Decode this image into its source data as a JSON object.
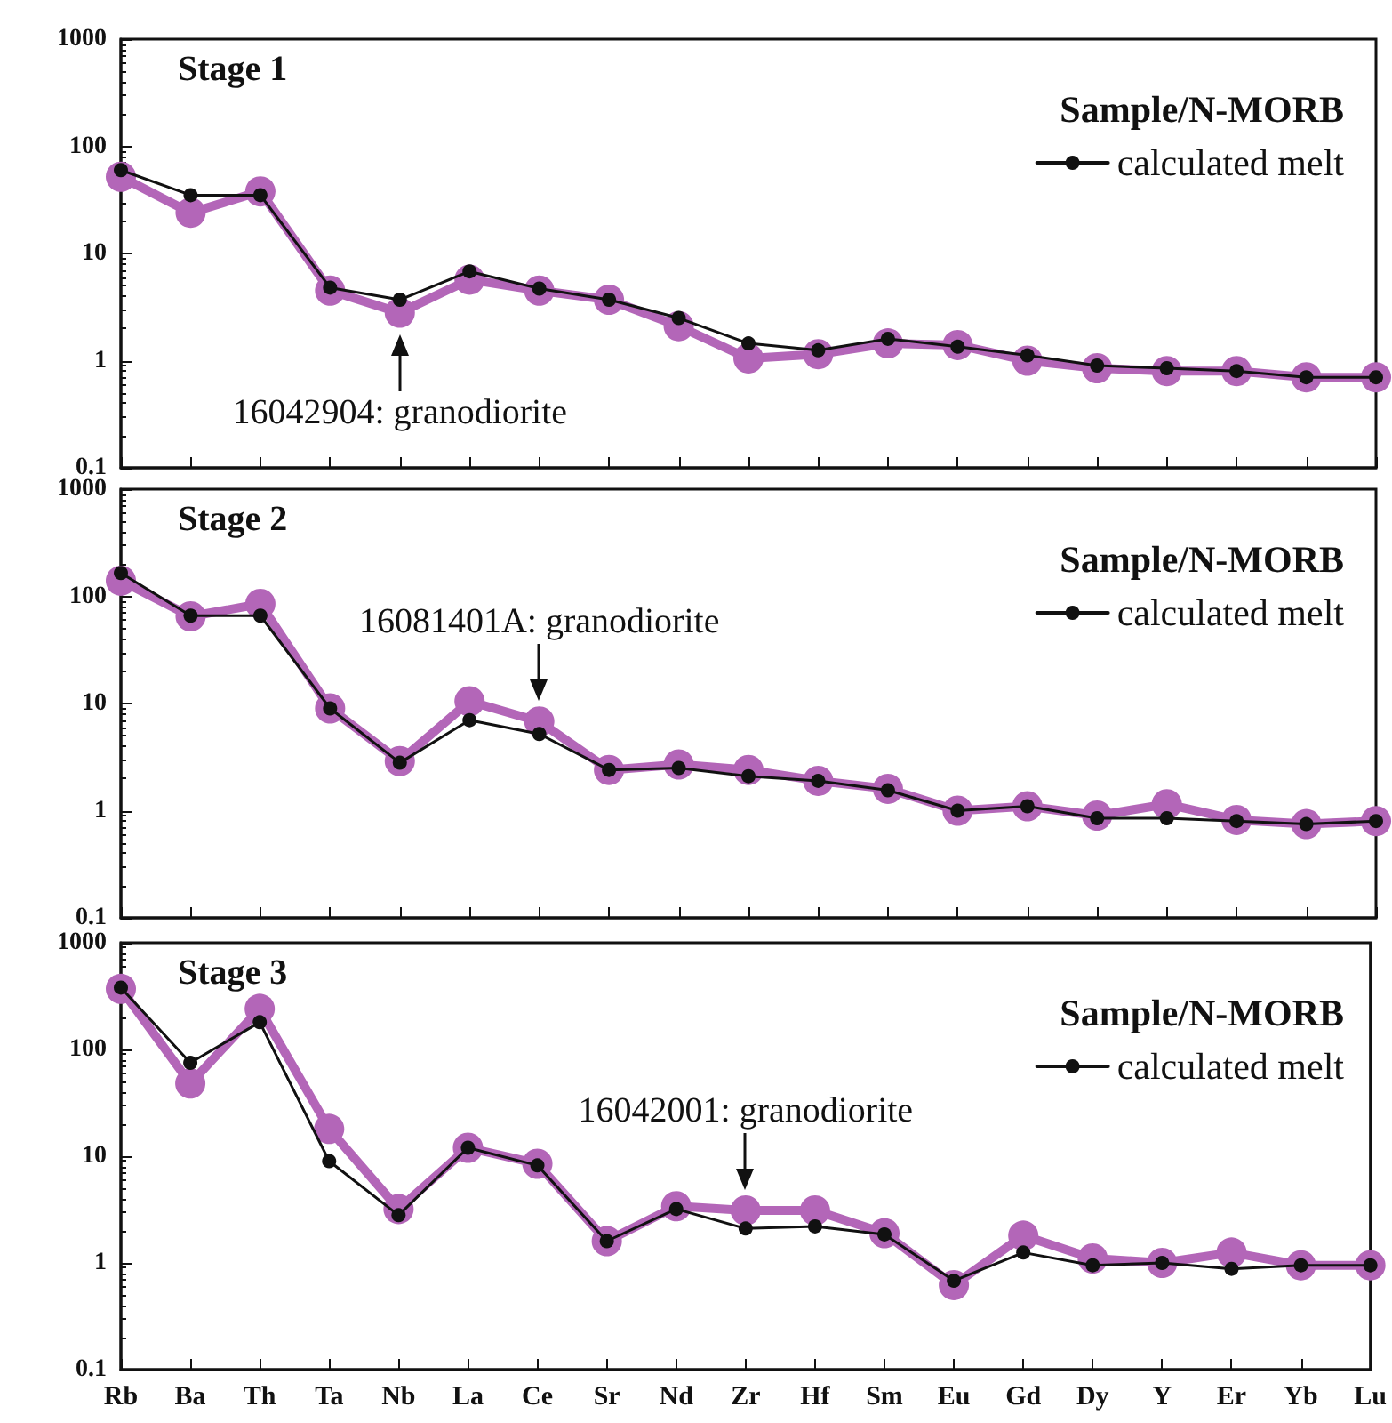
{
  "chart_data": [
    {
      "type": "line",
      "title": "Stage 1",
      "legend_title": "Sample/N-MORB",
      "legend": "top right",
      "log": true,
      "tick_labels": "y",
      "marker": "circle",
      "line_style": "solid",
      "grid": false,
      "categories": [
        "Rb",
        "Ba",
        "Th",
        "Ta",
        "Nb",
        "La",
        "Ce",
        "Sr",
        "Nd",
        "Zr",
        "Hf",
        "Sm",
        "Eu",
        "Gd",
        "Dy",
        "Y",
        "Er",
        "Yb",
        "Lu"
      ],
      "ylim": [
        0.1,
        1000
      ],
      "yticks": [
        0.1,
        1,
        10,
        100,
        1000
      ],
      "series": [
        {
          "color": "#b366b8",
          "values": [
            52,
            24,
            38,
            4.5,
            2.8,
            5.7,
            4.5,
            3.7,
            2.1,
            1.05,
            1.15,
            1.45,
            1.4,
            1.0,
            0.85,
            0.8,
            0.8,
            0.7,
            0.7
          ]
        },
        {
          "name": "calculated melt",
          "color": "#111111",
          "values": [
            60,
            35,
            35,
            4.8,
            3.7,
            6.8,
            4.7,
            3.7,
            2.5,
            1.45,
            1.25,
            1.6,
            1.35,
            1.12,
            0.9,
            0.85,
            0.8,
            0.7,
            0.7
          ]
        }
      ],
      "annotations": [
        {
          "text": "16042904: granodiorite",
          "x": "Nb",
          "y": 2.8
        }
      ]
    },
    {
      "type": "line",
      "title": "Stage 2",
      "legend_title": "Sample/N-MORB",
      "legend": "top right",
      "log": true,
      "tick_labels": "y",
      "marker": "circle",
      "line_style": "solid",
      "grid": false,
      "categories": [
        "Rb",
        "Ba",
        "Th",
        "Ta",
        "Nb",
        "La",
        "Ce",
        "Sr",
        "Nd",
        "Zr",
        "Hf",
        "Sm",
        "Eu",
        "Gd",
        "Dy",
        "Y",
        "Er",
        "Yb",
        "Lu"
      ],
      "ylim": [
        0.1,
        1000
      ],
      "yticks": [
        0.1,
        1,
        10,
        100,
        1000
      ],
      "series": [
        {
          "color": "#b366b8",
          "values": [
            140,
            65,
            85,
            9,
            2.9,
            10.5,
            6.8,
            2.4,
            2.7,
            2.4,
            1.9,
            1.6,
            1.0,
            1.1,
            0.9,
            1.15,
            0.82,
            0.75,
            0.8
          ]
        },
        {
          "name": "calculated melt",
          "color": "#111111",
          "values": [
            165,
            66,
            66,
            9,
            2.8,
            7,
            5.2,
            2.4,
            2.5,
            2.1,
            1.9,
            1.55,
            1.0,
            1.1,
            0.85,
            0.85,
            0.8,
            0.75,
            0.8
          ]
        }
      ],
      "annotations": [
        {
          "text": "16081401A: granodiorite",
          "x": "Ce",
          "y": 6.8
        }
      ]
    },
    {
      "type": "line",
      "title": "Stage 3",
      "legend_title": "Sample/N-MORB",
      "legend": "top right",
      "log": true,
      "marker": "circle",
      "line_style": "solid",
      "grid": false,
      "categories": [
        "Rb",
        "Ba",
        "Th",
        "Ta",
        "Nb",
        "La",
        "Ce",
        "Sr",
        "Nd",
        "Zr",
        "Hf",
        "Sm",
        "Eu",
        "Gd",
        "Dy",
        "Y",
        "Er",
        "Yb",
        "Lu"
      ],
      "ylim": [
        0.1,
        1000
      ],
      "yticks": [
        0.1,
        1,
        10,
        100,
        1000
      ],
      "series": [
        {
          "color": "#b366b8",
          "values": [
            370,
            48,
            240,
            18,
            3.2,
            12,
            8.5,
            1.6,
            3.4,
            3.1,
            3.1,
            1.9,
            0.62,
            1.8,
            1.1,
            1.0,
            1.25,
            0.95,
            0.95
          ]
        },
        {
          "name": "calculated melt",
          "color": "#111111",
          "values": [
            380,
            75,
            180,
            9,
            2.8,
            12,
            8.2,
            1.6,
            3.2,
            2.1,
            2.2,
            1.85,
            0.68,
            1.25,
            0.95,
            1.0,
            0.88,
            0.95,
            0.95
          ]
        }
      ],
      "annotations": [
        {
          "text": "16042001: granodiorite",
          "x": "Zr",
          "y": 3.1
        }
      ]
    }
  ]
}
